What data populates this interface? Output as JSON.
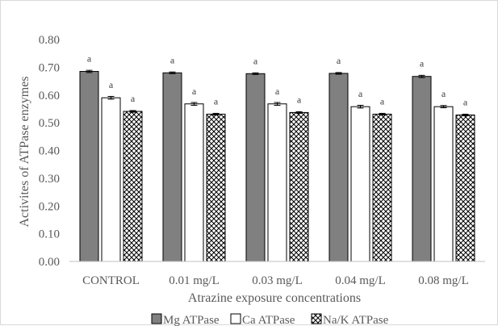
{
  "chart_data": {
    "type": "bar",
    "title": "",
    "xlabel": "Atrazine exposure concentrations",
    "ylabel": "Activites of ATPase enzymes",
    "ylim": [
      0,
      0.8
    ],
    "yticks": [
      "0.00",
      "0.10",
      "0.20",
      "0.30",
      "0.40",
      "0.50",
      "0.60",
      "0.70",
      "0.80"
    ],
    "categories": [
      "CONTROL",
      "0.01 mg/L",
      "0.03 mg/L",
      "0.04 mg/L",
      "0.08 mg/L"
    ],
    "series": [
      {
        "name": "Mg ATPase",
        "values": [
          0.685,
          0.68,
          0.677,
          0.678,
          0.667
        ],
        "errors": [
          0.004,
          0.003,
          0.003,
          0.003,
          0.004
        ],
        "labels": [
          "a",
          "a",
          "a",
          "a",
          "a"
        ],
        "fill": "#808080",
        "pattern": "solid"
      },
      {
        "name": "Ca ATPase",
        "values": [
          0.59,
          0.568,
          0.568,
          0.558,
          0.558
        ],
        "errors": [
          0.005,
          0.005,
          0.005,
          0.005,
          0.004
        ],
        "labels": [
          "a",
          "a",
          "a",
          "a",
          "a"
        ],
        "fill": "#ffffff",
        "pattern": "none"
      },
      {
        "name": "Na/K ATPase",
        "values": [
          0.541,
          0.531,
          0.537,
          0.531,
          0.528
        ],
        "errors": [
          0.003,
          0.003,
          0.003,
          0.003,
          0.003
        ],
        "labels": [
          "a",
          "a",
          "a",
          "a",
          "a"
        ],
        "fill": "#ffffff",
        "pattern": "crosshatch"
      }
    ],
    "grid": false,
    "legend_position": "bottom"
  }
}
